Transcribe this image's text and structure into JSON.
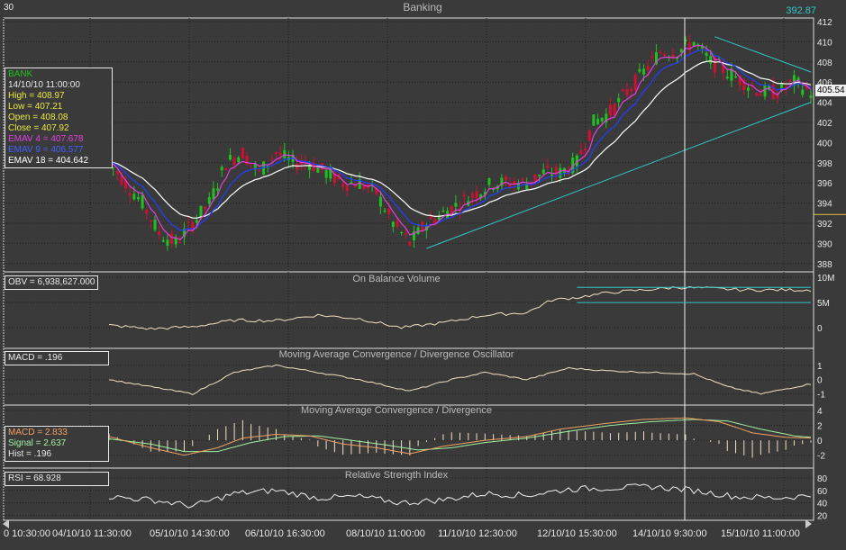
{
  "window": {
    "corner_label": "30",
    "title": "Banking",
    "last_price": "392.87"
  },
  "colors": {
    "bg": "#3a3a3a",
    "grid": "#1e1e1e",
    "up": "#20c020",
    "down": "#d01030",
    "ema4": "#e040e0",
    "ema9": "#2040ff",
    "ema18": "#ffffff",
    "trend": "#30c8c8",
    "osc": "#f0e0c0",
    "text": "#e8e8e8"
  },
  "price_panel": {
    "info": {
      "symbol": "BANK",
      "datetime": "14/10/10 11:00:00",
      "high": "High  = 408.97",
      "low": "Low   = 407.21",
      "open": "Open = 408.08",
      "close": "Close = 407.92",
      "ema4": "EMAV 4 = 407.678",
      "ema9": "EMAV 9 = 406.577",
      "ema18": "EMAV 18 = 404.642"
    },
    "y_ticks": [
      "412",
      "410",
      "408",
      "406",
      "404",
      "402",
      "400",
      "398",
      "396",
      "394",
      "392",
      "390",
      "388"
    ],
    "current_price": "405.54",
    "ylim": [
      387,
      412
    ]
  },
  "obv_panel": {
    "title": "On Balance Volume",
    "info": "OBV = 6,938,627.000",
    "y_ticks": [
      "10M",
      "5M",
      "0"
    ]
  },
  "osc_panel": {
    "title": "Moving Average Convergence / Divergence Oscillator",
    "info": "MACD = .196",
    "y_ticks": [
      "1",
      "0",
      "-1"
    ]
  },
  "macd_panel": {
    "title": "Moving Average Convergence / Divergence",
    "info": {
      "macd": "MACD = 2.833",
      "signal": "Signal = 2.637",
      "hist": "Hist = .196"
    },
    "y_ticks": [
      "4",
      "2",
      "0",
      "-2"
    ]
  },
  "rsi_panel": {
    "title": "Relative Strength Index",
    "info": "RSI = 68.928",
    "y_ticks": [
      "80",
      "60",
      "40",
      "20"
    ]
  },
  "x_axis": {
    "labels": [
      "0 10:30:00",
      "04/10/10 11:30:00",
      "05/10/10 14:30:00",
      "06/10/10 16:30:00",
      "08/10/10 11:00:00",
      "11/10/10 12:30:00",
      "12/10/10 15:30:00",
      "14/10/10 9:30:00",
      "15/10/10 11:00:00"
    ]
  },
  "chart_data": {
    "type": "line",
    "price_anchors": [
      [
        0,
        398
      ],
      [
        4,
        396
      ],
      [
        8,
        394
      ],
      [
        12,
        391
      ],
      [
        16,
        390
      ],
      [
        20,
        392
      ],
      [
        24,
        394
      ],
      [
        28,
        398
      ],
      [
        32,
        399
      ],
      [
        36,
        397
      ],
      [
        40,
        399
      ],
      [
        44,
        398
      ],
      [
        48,
        398
      ],
      [
        52,
        397
      ],
      [
        56,
        396
      ],
      [
        60,
        396
      ],
      [
        64,
        395
      ],
      [
        68,
        392
      ],
      [
        72,
        390
      ],
      [
        76,
        392
      ],
      [
        80,
        393
      ],
      [
        84,
        394
      ],
      [
        88,
        395
      ],
      [
        92,
        396
      ],
      [
        96,
        396
      ],
      [
        100,
        396
      ],
      [
        104,
        397
      ],
      [
        108,
        397
      ],
      [
        112,
        398
      ],
      [
        116,
        402
      ],
      [
        120,
        403
      ],
      [
        124,
        405
      ],
      [
        128,
        407
      ],
      [
        132,
        409
      ],
      [
        136,
        409
      ],
      [
        140,
        410
      ],
      [
        144,
        408
      ],
      [
        148,
        407
      ],
      [
        152,
        406
      ],
      [
        156,
        405
      ],
      [
        160,
        405
      ],
      [
        164,
        406
      ],
      [
        168,
        405
      ]
    ],
    "obv_anchors": [
      [
        0,
        0.5
      ],
      [
        10,
        -0.2
      ],
      [
        20,
        0.2
      ],
      [
        30,
        1.5
      ],
      [
        40,
        1.4
      ],
      [
        50,
        2.5
      ],
      [
        60,
        1.8
      ],
      [
        70,
        0
      ],
      [
        80,
        1
      ],
      [
        90,
        2.5
      ],
      [
        100,
        3
      ],
      [
        106,
        5.5
      ],
      [
        112,
        6
      ],
      [
        120,
        7
      ],
      [
        128,
        7.5
      ],
      [
        136,
        8
      ],
      [
        144,
        7.8
      ],
      [
        152,
        7.5
      ],
      [
        160,
        7.5
      ],
      [
        168,
        7.5
      ]
    ],
    "osc_anchors": [
      [
        0,
        0
      ],
      [
        10,
        -0.5
      ],
      [
        20,
        -1
      ],
      [
        30,
        0.5
      ],
      [
        40,
        1
      ],
      [
        50,
        0.5
      ],
      [
        60,
        0
      ],
      [
        72,
        -0.8
      ],
      [
        82,
        0
      ],
      [
        90,
        0.5
      ],
      [
        100,
        0
      ],
      [
        110,
        0.8
      ],
      [
        120,
        0.6
      ],
      [
        130,
        0.5
      ],
      [
        140,
        0.4
      ],
      [
        148,
        -0.5
      ],
      [
        156,
        -1
      ],
      [
        168,
        -0.3
      ]
    ],
    "macd_anchors": [
      [
        0,
        0.5
      ],
      [
        10,
        -1
      ],
      [
        18,
        -2
      ],
      [
        26,
        -1
      ],
      [
        32,
        0.3
      ],
      [
        40,
        0.8
      ],
      [
        48,
        0.6
      ],
      [
        56,
        -0.5
      ],
      [
        64,
        -1
      ],
      [
        72,
        -1.8
      ],
      [
        80,
        -0.8
      ],
      [
        90,
        0
      ],
      [
        100,
        0.5
      ],
      [
        108,
        1.5
      ],
      [
        118,
        2.2
      ],
      [
        128,
        2.8
      ],
      [
        138,
        3
      ],
      [
        146,
        2.5
      ],
      [
        154,
        1
      ],
      [
        162,
        0.4
      ],
      [
        168,
        0.3
      ]
    ],
    "signal_anchors": [
      [
        0,
        0.2
      ],
      [
        10,
        -0.5
      ],
      [
        18,
        -1.5
      ],
      [
        26,
        -1.5
      ],
      [
        34,
        -0.3
      ],
      [
        42,
        0.5
      ],
      [
        50,
        0.6
      ],
      [
        58,
        0
      ],
      [
        66,
        -0.6
      ],
      [
        74,
        -1.3
      ],
      [
        82,
        -1
      ],
      [
        90,
        -0.3
      ],
      [
        100,
        0.3
      ],
      [
        110,
        1.2
      ],
      [
        120,
        2
      ],
      [
        130,
        2.5
      ],
      [
        140,
        2.8
      ],
      [
        148,
        2.6
      ],
      [
        156,
        1.5
      ],
      [
        164,
        0.6
      ],
      [
        168,
        0.4
      ]
    ],
    "rsi_anchors": [
      [
        0,
        50
      ],
      [
        10,
        45
      ],
      [
        20,
        35
      ],
      [
        30,
        55
      ],
      [
        40,
        60
      ],
      [
        50,
        48
      ],
      [
        60,
        50
      ],
      [
        70,
        40
      ],
      [
        80,
        45
      ],
      [
        90,
        55
      ],
      [
        100,
        52
      ],
      [
        110,
        62
      ],
      [
        120,
        64
      ],
      [
        130,
        66
      ],
      [
        140,
        60
      ],
      [
        150,
        50
      ],
      [
        160,
        48
      ],
      [
        168,
        52
      ]
    ],
    "trendlines": [
      {
        "from": [
          76,
          389.5
        ],
        "to": [
          168,
          404
        ]
      },
      {
        "from": [
          145,
          410.5
        ],
        "to": [
          168,
          407
        ]
      }
    ],
    "obv_channel": [
      8,
      5
    ]
  }
}
